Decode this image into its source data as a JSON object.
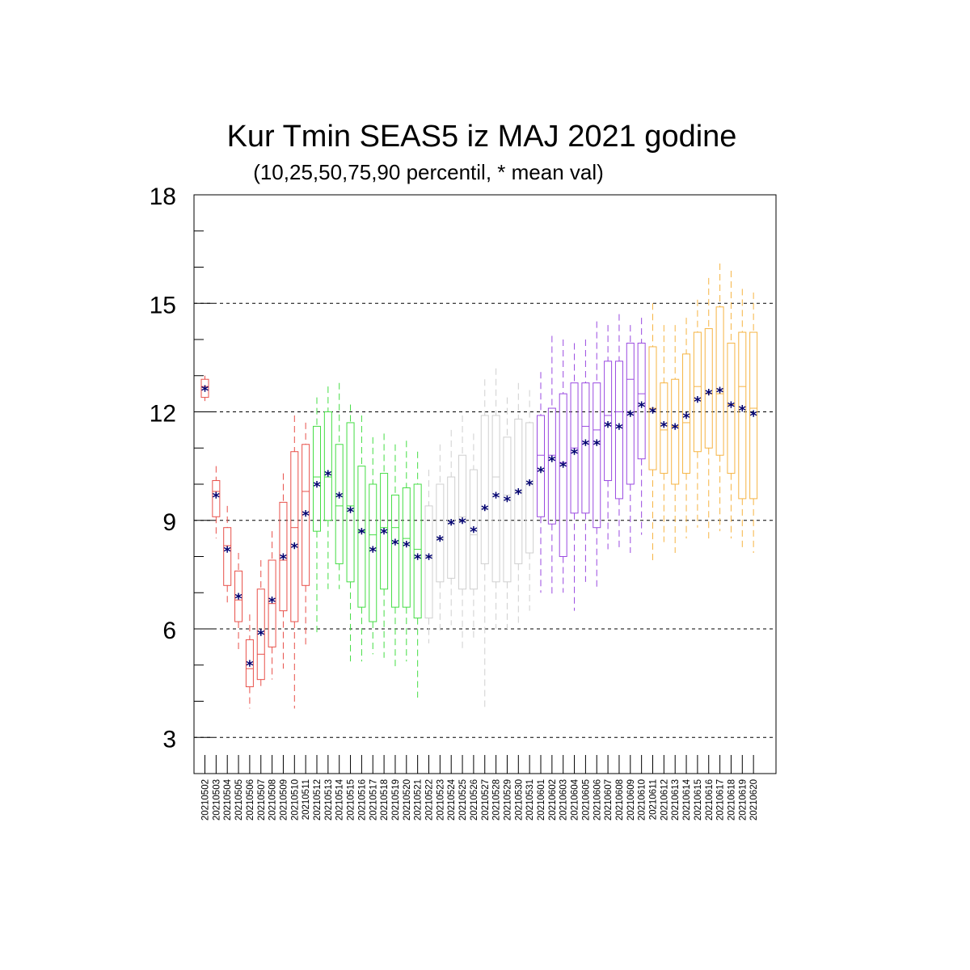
{
  "chart_data": {
    "type": "box",
    "title": "Kur Tmin SEAS5 iz MAJ 2021 godine",
    "subtitle": "(10,25,50,75,90 percentil, * mean val)",
    "ylim": [
      2,
      18
    ],
    "yticks": [
      3,
      6,
      9,
      12,
      15,
      18
    ],
    "grid": "dashed at major y ticks",
    "colors": {
      "red": "#e8504a",
      "green": "#44dd44",
      "gray": "#cfcfcf",
      "purple": "#9a4ae0",
      "orange": "#f6b443",
      "mean": "#000070"
    },
    "categories": [
      "20210502",
      "20210503",
      "20210504",
      "20210505",
      "20210506",
      "20210507",
      "20210508",
      "20210509",
      "20210510",
      "20210511",
      "20210512",
      "20210513",
      "20210514",
      "20210515",
      "20210516",
      "20210517",
      "20210518",
      "20210519",
      "20210520",
      "20210521",
      "20210522",
      "20210523",
      "20210524",
      "20210525",
      "20210526",
      "20210527",
      "20210528",
      "20210529",
      "20210530",
      "20210531",
      "20210601",
      "20210602",
      "20210603",
      "20210604",
      "20210605",
      "20210606",
      "20210607",
      "20210608",
      "20210609",
      "20210610",
      "20210611",
      "20210612",
      "20210613",
      "20210614",
      "20210615",
      "20210616",
      "20210617",
      "20210618",
      "20210619",
      "20210620"
    ],
    "series": [
      {
        "color": "red",
        "p10": 12.3,
        "p25": 12.4,
        "p50": 12.7,
        "p75": 12.9,
        "p90": 13.0,
        "mean": 12.65
      },
      {
        "color": "red",
        "p10": 8.5,
        "p25": 9.1,
        "p50": 9.8,
        "p75": 10.1,
        "p90": 10.5,
        "mean": 9.7
      },
      {
        "color": "red",
        "p10": 6.7,
        "p25": 7.2,
        "p50": 8.3,
        "p75": 8.8,
        "p90": 9.4,
        "mean": 8.2
      },
      {
        "color": "red",
        "p10": 5.4,
        "p25": 6.2,
        "p50": 6.8,
        "p75": 7.6,
        "p90": 8.1,
        "mean": 6.9
      },
      {
        "color": "red",
        "p10": 3.8,
        "p25": 4.4,
        "p50": 4.9,
        "p75": 5.7,
        "p90": 6.4,
        "mean": 5.05
      },
      {
        "color": "red",
        "p10": 4.4,
        "p25": 4.6,
        "p50": 5.3,
        "p75": 7.1,
        "p90": 7.9,
        "mean": 5.9
      },
      {
        "color": "red",
        "p10": 4.6,
        "p25": 5.5,
        "p50": 6.7,
        "p75": 7.9,
        "p90": 8.7,
        "mean": 6.8
      },
      {
        "color": "red",
        "p10": 4.9,
        "p25": 6.5,
        "p50": 7.9,
        "p75": 9.5,
        "p90": 10.3,
        "mean": 8.0
      },
      {
        "color": "red",
        "p10": 3.8,
        "p25": 6.2,
        "p50": 8.8,
        "p75": 10.9,
        "p90": 11.9,
        "mean": 8.3
      },
      {
        "color": "red",
        "p10": 5.5,
        "p25": 7.2,
        "p50": 9.8,
        "p75": 11.1,
        "p90": 11.7,
        "mean": 9.2
      },
      {
        "color": "green",
        "p10": 5.8,
        "p25": 8.7,
        "p50": 10.2,
        "p75": 11.6,
        "p90": 12.4,
        "mean": 10.0
      },
      {
        "color": "green",
        "p10": 7.1,
        "p25": 9.0,
        "p50": 10.2,
        "p75": 12.0,
        "p90": 12.7,
        "mean": 10.3
      },
      {
        "color": "green",
        "p10": 7.1,
        "p25": 7.8,
        "p50": 9.4,
        "p75": 11.1,
        "p90": 12.8,
        "mean": 9.7
      },
      {
        "color": "green",
        "p10": 5.1,
        "p25": 7.3,
        "p50": 9.4,
        "p75": 11.7,
        "p90": 12.2,
        "mean": 9.3
      },
      {
        "color": "green",
        "p10": 5.1,
        "p25": 6.6,
        "p50": 8.7,
        "p75": 10.5,
        "p90": 11.9,
        "mean": 8.7
      },
      {
        "color": "green",
        "p10": 5.3,
        "p25": 6.2,
        "p50": 8.6,
        "p75": 10.0,
        "p90": 11.3,
        "mean": 8.2
      },
      {
        "color": "green",
        "p10": 5.2,
        "p25": 7.1,
        "p50": 8.8,
        "p75": 10.3,
        "p90": 11.4,
        "mean": 8.7
      },
      {
        "color": "green",
        "p10": 4.9,
        "p25": 6.6,
        "p50": 8.8,
        "p75": 9.7,
        "p90": 11.1,
        "mean": 8.4
      },
      {
        "color": "green",
        "p10": 5.1,
        "p25": 6.6,
        "p50": 8.5,
        "p75": 9.9,
        "p90": 11.2,
        "mean": 8.35
      },
      {
        "color": "green",
        "p10": 4.1,
        "p25": 6.3,
        "p50": 8.2,
        "p75": 10.0,
        "p90": 10.9,
        "mean": 8.0
      },
      {
        "color": "gray",
        "p10": 5.6,
        "p25": 6.3,
        "p50": 8.0,
        "p75": 9.4,
        "p90": 10.4,
        "mean": 8.0
      },
      {
        "color": "gray",
        "p10": 5.9,
        "p25": 7.3,
        "p50": 8.5,
        "p75": 10.0,
        "p90": 11.1,
        "mean": 8.5
      },
      {
        "color": "gray",
        "p10": 6.1,
        "p25": 7.4,
        "p50": 8.9,
        "p75": 10.2,
        "p90": 11.5,
        "mean": 8.95
      },
      {
        "color": "gray",
        "p10": 5.4,
        "p25": 7.1,
        "p50": 9.1,
        "p75": 10.8,
        "p90": 11.9,
        "mean": 9.0
      },
      {
        "color": "gray",
        "p10": 5.7,
        "p25": 7.1,
        "p50": 8.6,
        "p75": 10.4,
        "p90": 11.4,
        "mean": 8.75
      },
      {
        "color": "gray",
        "p10": 3.8,
        "p25": 7.8,
        "p50": 9.3,
        "p75": 11.9,
        "p90": 12.9,
        "mean": 9.35
      },
      {
        "color": "gray",
        "p10": 6.0,
        "p25": 7.3,
        "p50": 10.2,
        "p75": 11.9,
        "p90": 13.2,
        "mean": 9.7
      },
      {
        "color": "gray",
        "p10": 6.0,
        "p25": 7.3,
        "p50": 9.7,
        "p75": 11.3,
        "p90": 12.4,
        "mean": 9.6
      },
      {
        "color": "gray",
        "p10": 6.1,
        "p25": 7.8,
        "p50": 9.8,
        "p75": 11.8,
        "p90": 12.8,
        "mean": 9.8
      },
      {
        "color": "gray",
        "p10": 6.5,
        "p25": 8.1,
        "p50": 10.0,
        "p75": 11.7,
        "p90": 12.6,
        "mean": 10.05
      },
      {
        "color": "purple",
        "p10": 7.0,
        "p25": 9.1,
        "p50": 10.8,
        "p75": 11.9,
        "p90": 13.1,
        "mean": 10.4
      },
      {
        "color": "purple",
        "p10": 6.9,
        "p25": 8.9,
        "p50": 10.8,
        "p75": 12.1,
        "p90": 14.1,
        "mean": 10.7
      },
      {
        "color": "purple",
        "p10": 7.0,
        "p25": 8.0,
        "p50": 10.6,
        "p75": 12.5,
        "p90": 14.0,
        "mean": 10.55
      },
      {
        "color": "purple",
        "p10": 6.5,
        "p25": 9.2,
        "p50": 11.0,
        "p75": 12.8,
        "p90": 13.9,
        "mean": 10.9
      },
      {
        "color": "purple",
        "p10": 7.3,
        "p25": 9.2,
        "p50": 11.6,
        "p75": 12.8,
        "p90": 14.0,
        "mean": 11.15
      },
      {
        "color": "purple",
        "p10": 7.1,
        "p25": 8.8,
        "p50": 11.5,
        "p75": 12.8,
        "p90": 14.5,
        "mean": 11.15
      },
      {
        "color": "purple",
        "p10": 8.2,
        "p25": 10.1,
        "p50": 11.9,
        "p75": 13.4,
        "p90": 14.4,
        "mean": 11.65
      },
      {
        "color": "purple",
        "p10": 8.2,
        "p25": 9.6,
        "p50": 12.0,
        "p75": 13.4,
        "p90": 14.7,
        "mean": 11.6
      },
      {
        "color": "purple",
        "p10": 8.1,
        "p25": 10.0,
        "p50": 12.9,
        "p75": 13.9,
        "p90": 14.4,
        "mean": 11.95
      },
      {
        "color": "purple",
        "p10": 8.6,
        "p25": 10.7,
        "p50": 12.5,
        "p75": 13.9,
        "p90": 14.6,
        "mean": 12.2
      },
      {
        "color": "orange",
        "p10": 7.9,
        "p25": 10.4,
        "p50": 12.1,
        "p75": 13.8,
        "p90": 15.0,
        "mean": 12.05
      },
      {
        "color": "orange",
        "p10": 8.4,
        "p25": 10.3,
        "p50": 11.5,
        "p75": 12.8,
        "p90": 14.4,
        "mean": 11.65
      },
      {
        "color": "orange",
        "p10": 8.1,
        "p25": 10.0,
        "p50": 11.6,
        "p75": 12.9,
        "p90": 14.4,
        "mean": 11.6
      },
      {
        "color": "orange",
        "p10": 8.5,
        "p25": 10.3,
        "p50": 11.7,
        "p75": 13.6,
        "p90": 14.6,
        "mean": 11.9
      },
      {
        "color": "orange",
        "p10": 8.8,
        "p25": 10.9,
        "p50": 12.7,
        "p75": 14.2,
        "p90": 15.1,
        "mean": 12.35
      },
      {
        "color": "orange",
        "p10": 8.5,
        "p25": 11.0,
        "p50": 12.5,
        "p75": 14.3,
        "p90": 15.7,
        "mean": 12.55
      },
      {
        "color": "orange",
        "p10": 8.7,
        "p25": 10.8,
        "p50": 12.5,
        "p75": 14.9,
        "p90": 16.1,
        "mean": 12.6
      },
      {
        "color": "orange",
        "p10": 8.5,
        "p25": 10.3,
        "p50": 12.2,
        "p75": 13.9,
        "p90": 15.9,
        "mean": 12.2
      },
      {
        "color": "orange",
        "p10": 8.2,
        "p25": 9.6,
        "p50": 12.7,
        "p75": 14.2,
        "p90": 15.4,
        "mean": 12.1
      },
      {
        "color": "orange",
        "p10": 8.1,
        "p25": 9.6,
        "p50": 12.1,
        "p75": 14.2,
        "p90": 15.3,
        "mean": 11.95
      }
    ]
  }
}
